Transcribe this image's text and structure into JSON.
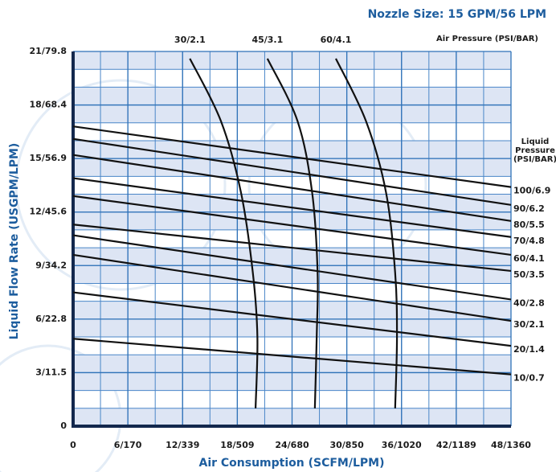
{
  "chart_data": {
    "type": "line",
    "title": "Nozzle Size: 15 GPM/56 LPM",
    "air_pressure_label": "Air Pressure (PSI/BAR)",
    "liquid_pressure_label": "Liquid Pressure (PSI/BAR)",
    "x_label": "Air Consumption (SCFM/LPM)",
    "y_label": "Liquid Flow Rate (USGPM/LPM)",
    "xlim": [
      0,
      48
    ],
    "ylim": [
      0,
      21
    ],
    "xticks": [
      0,
      {
        "value": 6,
        "label": "6/170"
      },
      {
        "value": 12,
        "label": "12/339"
      },
      {
        "value": 18,
        "label": "18/509"
      },
      {
        "value": 24,
        "label": "24/680"
      },
      {
        "value": 30,
        "label": "30/850"
      },
      {
        "value": 36,
        "label": "36/1020"
      },
      {
        "value": 42,
        "label": "42/1189"
      },
      {
        "value": 48,
        "label": "48/1360"
      }
    ],
    "yticks": [
      0,
      {
        "value": 3,
        "label": "3/11.5"
      },
      {
        "value": 6,
        "label": "6/22.8"
      },
      {
        "value": 9,
        "label": "9/34.2"
      },
      {
        "value": 12,
        "label": "12/45.6"
      },
      {
        "value": 15,
        "label": "15/56.9"
      },
      {
        "value": 18,
        "label": "18/68.4"
      },
      {
        "value": 21,
        "label": "21/79.8"
      }
    ],
    "grid": true,
    "series": [
      {
        "name": "100/6.9",
        "color": "#111111",
        "x": [
          0,
          48
        ],
        "values": [
          16.8,
          13.4
        ]
      },
      {
        "name": "90/6.2",
        "color": "#111111",
        "x": [
          0,
          48
        ],
        "values": [
          16.1,
          12.4
        ]
      },
      {
        "name": "80/5.5",
        "color": "#111111",
        "x": [
          0,
          48
        ],
        "values": [
          15.2,
          11.5
        ]
      },
      {
        "name": "70/4.8",
        "color": "#111111",
        "x": [
          0,
          48
        ],
        "values": [
          13.9,
          10.6
        ]
      },
      {
        "name": "60/4.1",
        "color": "#111111",
        "x": [
          0,
          48
        ],
        "values": [
          12.9,
          9.6
        ]
      },
      {
        "name": "50/3.5",
        "color": "#111111",
        "x": [
          0,
          48
        ],
        "values": [
          11.3,
          8.7
        ]
      },
      {
        "name": "40/2.8",
        "color": "#111111",
        "x": [
          0,
          48
        ],
        "values": [
          10.7,
          7.1
        ]
      },
      {
        "name": "30/2.1",
        "color": "#111111",
        "x": [
          0,
          48
        ],
        "values": [
          9.6,
          5.9
        ]
      },
      {
        "name": "20/1.4",
        "color": "#111111",
        "x": [
          0,
          48
        ],
        "values": [
          7.5,
          4.5
        ]
      },
      {
        "name": "10/0.7",
        "color": "#111111",
        "x": [
          0,
          48
        ],
        "values": [
          4.9,
          2.9
        ]
      },
      {
        "name": "30/2.1",
        "color": "#111111",
        "x": [
          12.8,
          16.2,
          18.4,
          19.7,
          20.2,
          20.0
        ],
        "values": [
          20.6,
          17.1,
          13.1,
          8.6,
          5.0,
          1.0
        ]
      },
      {
        "name": "45/3.1",
        "color": "#111111",
        "x": [
          21.3,
          24.6,
          26.2,
          26.8,
          26.7,
          26.5
        ],
        "values": [
          20.6,
          17.1,
          13.1,
          8.6,
          5.0,
          1.0
        ]
      },
      {
        "name": "60/4.1",
        "color": "#111111",
        "x": [
          28.8,
          32.1,
          34.3,
          35.3,
          35.5,
          35.3
        ],
        "values": [
          20.6,
          17.1,
          13.1,
          8.6,
          5.0,
          1.0
        ]
      }
    ]
  }
}
